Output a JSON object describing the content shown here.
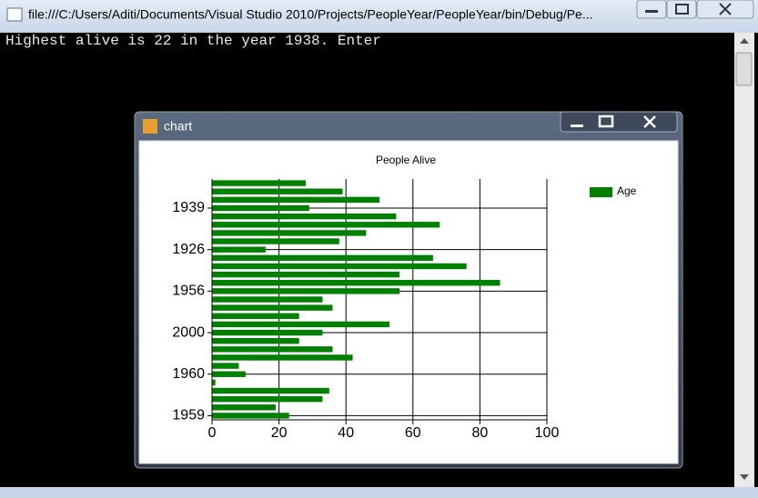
{
  "window": {
    "title": "file:///C:/Users/Aditi/Documents/Visual Studio 2010/Projects/PeopleYear/PeopleYear/bin/Debug/Pe...",
    "console_text": "Highest alive is 22 in the year 1938. Enter"
  },
  "chart_window": {
    "title": "chart"
  },
  "chart_data": {
    "type": "bar",
    "orientation": "horizontal",
    "title": "People Alive",
    "categories": [
      "1959",
      null,
      null,
      null,
      null,
      "1960",
      null,
      null,
      null,
      null,
      "2000",
      null,
      null,
      null,
      null,
      "1956",
      null,
      null,
      null,
      null,
      "1926",
      null,
      null,
      null,
      null,
      "1939",
      null,
      null,
      null
    ],
    "series": [
      {
        "name": "Age",
        "color": "#008000",
        "values": [
          23,
          19,
          33,
          35,
          1,
          10,
          8,
          42,
          36,
          26,
          33,
          53,
          26,
          36,
          33,
          56,
          86,
          56,
          76,
          66,
          16,
          38,
          46,
          68,
          55,
          29,
          50,
          39,
          28
        ]
      }
    ],
    "xlim": [
      0,
      100
    ],
    "xticks": [
      0,
      20,
      40,
      60,
      80,
      100
    ],
    "grid": true,
    "legend": "top-right"
  }
}
